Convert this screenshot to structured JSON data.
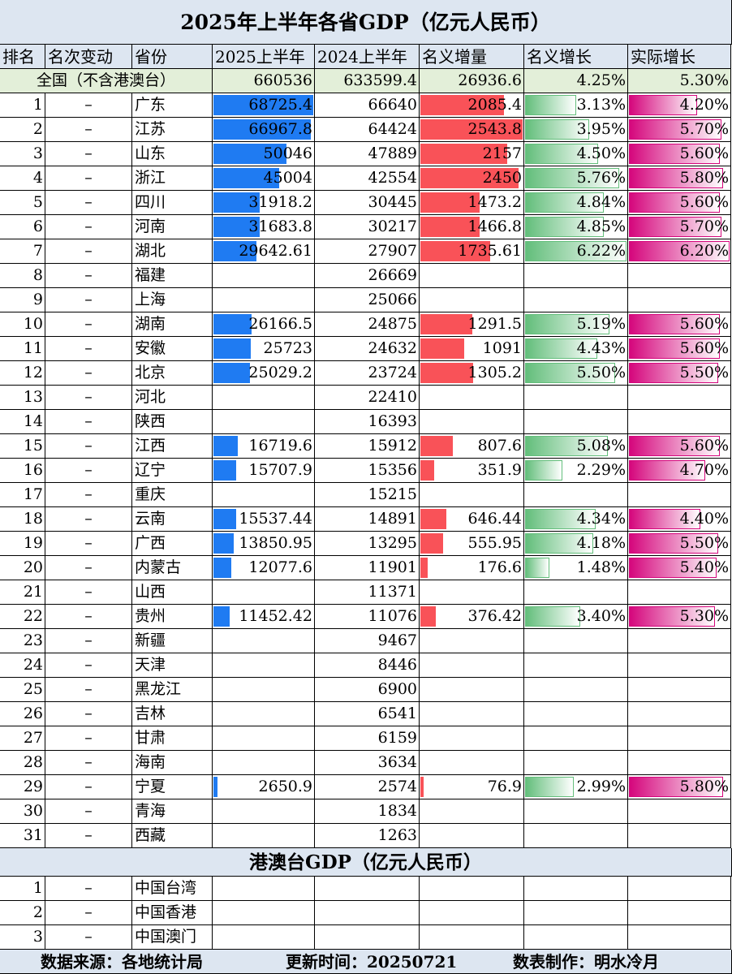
{
  "title": "2025年上半年各省GDP（亿元人民币）",
  "headers": [
    "排名",
    "名次变动",
    "省份",
    "2025上半年",
    "2024上半年",
    "名义增量",
    "名义增长",
    "实际增长"
  ],
  "total": {
    "label": "全国（不含港澳台）",
    "h1_2025": "660536",
    "h1_2024": "633599.4",
    "increase": "26936.6",
    "nominal": "4.25%",
    "real": "5.30%"
  },
  "rows": [
    {
      "rank": "1",
      "change": "–",
      "province": "广东",
      "h1_2025": "68725.4",
      "h1_2024": "66640",
      "increase": "2085.4",
      "nominal": "3.13%",
      "real": "4.20%"
    },
    {
      "rank": "2",
      "change": "–",
      "province": "江苏",
      "h1_2025": "66967.8",
      "h1_2024": "64424",
      "increase": "2543.8",
      "nominal": "3.95%",
      "real": "5.70%"
    },
    {
      "rank": "3",
      "change": "–",
      "province": "山东",
      "h1_2025": "50046",
      "h1_2024": "47889",
      "increase": "2157",
      "nominal": "4.50%",
      "real": "5.60%"
    },
    {
      "rank": "4",
      "change": "–",
      "province": "浙江",
      "h1_2025": "45004",
      "h1_2024": "42554",
      "increase": "2450",
      "nominal": "5.76%",
      "real": "5.80%"
    },
    {
      "rank": "5",
      "change": "–",
      "province": "四川",
      "h1_2025": "31918.2",
      "h1_2024": "30445",
      "increase": "1473.2",
      "nominal": "4.84%",
      "real": "5.60%"
    },
    {
      "rank": "6",
      "change": "–",
      "province": "河南",
      "h1_2025": "31683.8",
      "h1_2024": "30217",
      "increase": "1466.8",
      "nominal": "4.85%",
      "real": "5.70%"
    },
    {
      "rank": "7",
      "change": "–",
      "province": "湖北",
      "h1_2025": "29642.61",
      "h1_2024": "27907",
      "increase": "1735.61",
      "nominal": "6.22%",
      "real": "6.20%"
    },
    {
      "rank": "8",
      "change": "–",
      "province": "福建",
      "h1_2025": "",
      "h1_2024": "26669",
      "increase": "",
      "nominal": "",
      "real": ""
    },
    {
      "rank": "9",
      "change": "–",
      "province": "上海",
      "h1_2025": "",
      "h1_2024": "25066",
      "increase": "",
      "nominal": "",
      "real": ""
    },
    {
      "rank": "10",
      "change": "–",
      "province": "湖南",
      "h1_2025": "26166.5",
      "h1_2024": "24875",
      "increase": "1291.5",
      "nominal": "5.19%",
      "real": "5.60%"
    },
    {
      "rank": "11",
      "change": "–",
      "province": "安徽",
      "h1_2025": "25723",
      "h1_2024": "24632",
      "increase": "1091",
      "nominal": "4.43%",
      "real": "5.60%"
    },
    {
      "rank": "12",
      "change": "–",
      "province": "北京",
      "h1_2025": "25029.2",
      "h1_2024": "23724",
      "increase": "1305.2",
      "nominal": "5.50%",
      "real": "5.50%"
    },
    {
      "rank": "13",
      "change": "–",
      "province": "河北",
      "h1_2025": "",
      "h1_2024": "22410",
      "increase": "",
      "nominal": "",
      "real": ""
    },
    {
      "rank": "14",
      "change": "–",
      "province": "陕西",
      "h1_2025": "",
      "h1_2024": "16393",
      "increase": "",
      "nominal": "",
      "real": ""
    },
    {
      "rank": "15",
      "change": "–",
      "province": "江西",
      "h1_2025": "16719.6",
      "h1_2024": "15912",
      "increase": "807.6",
      "nominal": "5.08%",
      "real": "5.60%"
    },
    {
      "rank": "16",
      "change": "–",
      "province": "辽宁",
      "h1_2025": "15707.9",
      "h1_2024": "15356",
      "increase": "351.9",
      "nominal": "2.29%",
      "real": "4.70%"
    },
    {
      "rank": "17",
      "change": "–",
      "province": "重庆",
      "h1_2025": "",
      "h1_2024": "15215",
      "increase": "",
      "nominal": "",
      "real": ""
    },
    {
      "rank": "18",
      "change": "–",
      "province": "云南",
      "h1_2025": "15537.44",
      "h1_2024": "14891",
      "increase": "646.44",
      "nominal": "4.34%",
      "real": "4.40%"
    },
    {
      "rank": "19",
      "change": "–",
      "province": "广西",
      "h1_2025": "13850.95",
      "h1_2024": "13295",
      "increase": "555.95",
      "nominal": "4.18%",
      "real": "5.50%"
    },
    {
      "rank": "20",
      "change": "–",
      "province": "内蒙古",
      "h1_2025": "12077.6",
      "h1_2024": "11901",
      "increase": "176.6",
      "nominal": "1.48%",
      "real": "5.40%"
    },
    {
      "rank": "21",
      "change": "–",
      "province": "山西",
      "h1_2025": "",
      "h1_2024": "11371",
      "increase": "",
      "nominal": "",
      "real": ""
    },
    {
      "rank": "22",
      "change": "–",
      "province": "贵州",
      "h1_2025": "11452.42",
      "h1_2024": "11076",
      "increase": "376.42",
      "nominal": "3.40%",
      "real": "5.30%"
    },
    {
      "rank": "23",
      "change": "–",
      "province": "新疆",
      "h1_2025": "",
      "h1_2024": "9467",
      "increase": "",
      "nominal": "",
      "real": ""
    },
    {
      "rank": "24",
      "change": "–",
      "province": "天津",
      "h1_2025": "",
      "h1_2024": "8446",
      "increase": "",
      "nominal": "",
      "real": ""
    },
    {
      "rank": "25",
      "change": "–",
      "province": "黑龙江",
      "h1_2025": "",
      "h1_2024": "6900",
      "increase": "",
      "nominal": "",
      "real": ""
    },
    {
      "rank": "26",
      "change": "–",
      "province": "吉林",
      "h1_2025": "",
      "h1_2024": "6541",
      "increase": "",
      "nominal": "",
      "real": ""
    },
    {
      "rank": "27",
      "change": "–",
      "province": "甘肃",
      "h1_2025": "",
      "h1_2024": "6159",
      "increase": "",
      "nominal": "",
      "real": ""
    },
    {
      "rank": "28",
      "change": "–",
      "province": "海南",
      "h1_2025": "",
      "h1_2024": "3634",
      "increase": "",
      "nominal": "",
      "real": ""
    },
    {
      "rank": "29",
      "change": "–",
      "province": "宁夏",
      "h1_2025": "2650.9",
      "h1_2024": "2574",
      "increase": "76.9",
      "nominal": "2.99%",
      "real": "5.80%"
    },
    {
      "rank": "30",
      "change": "–",
      "province": "青海",
      "h1_2025": "",
      "h1_2024": "1834",
      "increase": "",
      "nominal": "",
      "real": ""
    },
    {
      "rank": "31",
      "change": "–",
      "province": "西藏",
      "h1_2025": "",
      "h1_2024": "1263",
      "increase": "",
      "nominal": "",
      "real": ""
    }
  ],
  "subtitle": "港澳台GDP（亿元人民币）",
  "hmt_rows": [
    {
      "rank": "1",
      "change": "–",
      "province": "中国台湾"
    },
    {
      "rank": "2",
      "change": "–",
      "province": "中国香港"
    },
    {
      "rank": "3",
      "change": "–",
      "province": "中国澳门"
    }
  ],
  "footer": {
    "source": "数据来源：各地统计局",
    "updated": "更新时间：20250721",
    "author": "数表制作：明水冷月"
  },
  "colors": {
    "gdp_bar": "#1f7bf2",
    "increase_bar": "#f95258",
    "nominal_bar": "#63be7b",
    "real_bar": "#d5067c",
    "header_bg": "#dde6f1",
    "total_bg": "#e3efd9"
  }
}
